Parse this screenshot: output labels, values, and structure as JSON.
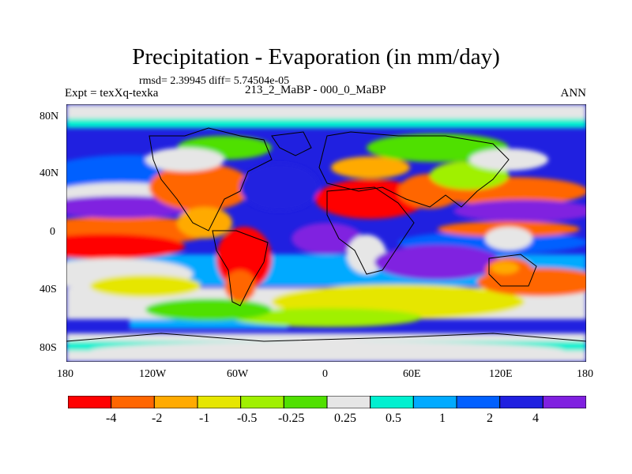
{
  "title": "Precipitation - Evaporation (in mm/day)",
  "stats": "rmsd= 2.39945 diff= 5.74504e-05",
  "experiment": "Expt = texXq-texka",
  "period": "213_2_MaBP - 000_0_MaBP",
  "season": "ANN",
  "map": {
    "projection": "cylindrical equidistant",
    "lon_range": [
      -180,
      180
    ],
    "lat_range": [
      -90,
      90
    ],
    "x_ticks": [
      {
        "lon": -180,
        "label": "180"
      },
      {
        "lon": -120,
        "label": "120W"
      },
      {
        "lon": -60,
        "label": "60W"
      },
      {
        "lon": 0,
        "label": "0"
      },
      {
        "lon": 60,
        "label": "60E"
      },
      {
        "lon": 120,
        "label": "120E"
      },
      {
        "lon": 180,
        "label": "180"
      }
    ],
    "y_ticks": [
      {
        "lat": 80,
        "label": "80N"
      },
      {
        "lat": 40,
        "label": "40N"
      },
      {
        "lat": 0,
        "label": "0"
      },
      {
        "lat": -40,
        "label": "40S"
      },
      {
        "lat": -80,
        "label": "80S"
      }
    ]
  },
  "colorbar": {
    "colors": [
      "#ff0000",
      "#ff6600",
      "#ffaa00",
      "#e6e600",
      "#a0f000",
      "#50e000",
      "#e6e6e6",
      "#00f0d0",
      "#00aaff",
      "#0060ff",
      "#2020e0",
      "#8020e0"
    ],
    "tick_labels": [
      "-4",
      "-2",
      "-1",
      "-0.5",
      "-0.25",
      "0.25",
      "0.5",
      "1",
      "2",
      "4"
    ]
  }
}
